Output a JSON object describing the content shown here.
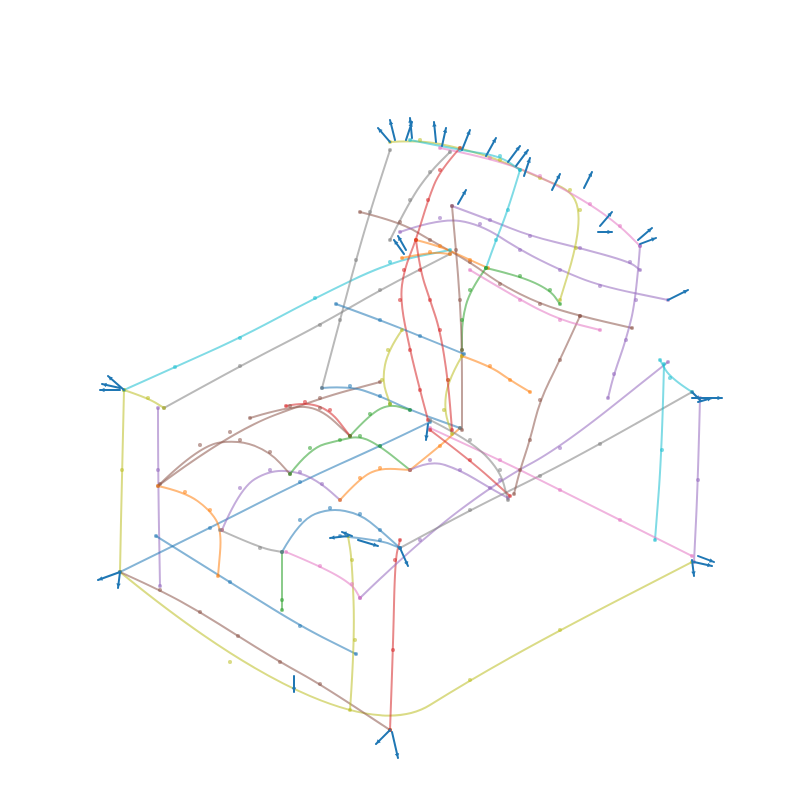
{
  "figure": {
    "kind": "sofa-wireframe-sketch",
    "background": "#ffffff"
  },
  "colors": {
    "blue": "#1f77b4",
    "orange": "#ff7f0e",
    "green": "#2ca02c",
    "red": "#d62728",
    "purple": "#9467bd",
    "brown": "#8c564b",
    "pink": "#e377c2",
    "gray": "#7f7f7f",
    "olive": "#bcbd22",
    "cyan": "#17becf"
  },
  "normal_arrow_color": "#1f77b4"
}
